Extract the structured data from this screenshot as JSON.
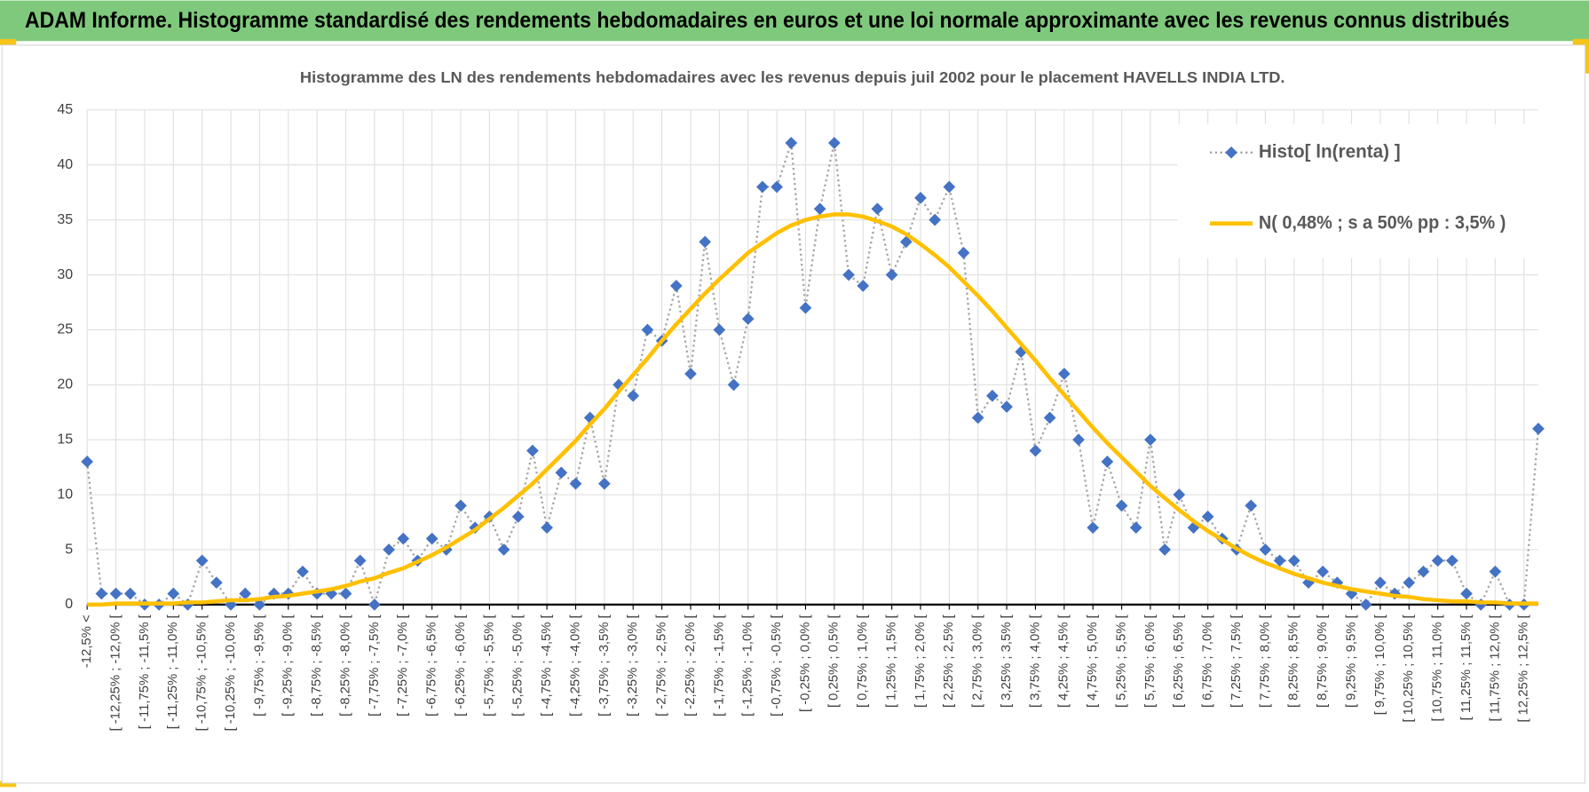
{
  "header": {
    "title": "ADAM Informe. Histogramme standardisé des rendements hebdomadaires en euros et une loi normale approximante avec les revenus connus distribués"
  },
  "chart_data": {
    "type": "line",
    "title": "Histogramme  des LN des rendements hebdomadaires avec les revenus depuis juil 2002 pour le placement HAVELLS INDIA LTD.",
    "categories": [
      "-12,5% <",
      null,
      "[ -12,25% ; -12,0% [",
      null,
      "[ -11,75% ; -11,5% [",
      null,
      "[ -11,25% ; -11,0% [",
      null,
      "[ -10,75% ; -10,5% [",
      null,
      "[ -10,25% ; -10,0% [",
      null,
      "[ -9,75% ; -9,5% [",
      null,
      "[ -9,25% ; -9,0% [",
      null,
      "[ -8,75% ; -8,5% [",
      null,
      "[ -8,25% ; -8,0% [",
      null,
      "[ -7,75% ; -7,5% [",
      null,
      "[ -7,25% ; -7,0% [",
      null,
      "[ -6,75% ; -6,5% [",
      null,
      "[ -6,25% ; -6,0% [",
      null,
      "[ -5,75% ; -5,5% [",
      null,
      "[ -5,25% ; -5,0% [",
      null,
      "[ -4,75% ; -4,5% [",
      null,
      "[ -4,25% ; -4,0% [",
      null,
      "[ -3,75% ; -3,5% [",
      null,
      "[ -3,25% ; -3,0% [",
      null,
      "[ -2,75% ; -2,5% [",
      null,
      "[ -2,25% ; -2,0% [",
      null,
      "[ -1,75% ; -1,5% [",
      null,
      "[ -1,25% ; -1,0% [",
      null,
      "[ -0,75% ; -0,5% [",
      null,
      "[ -0,25% ; 0,0% [",
      null,
      "[ 0,25% ; 0,5% [",
      null,
      "[ 0,75% ; 1,0% [",
      null,
      "[ 1,25% ; 1,5% [",
      null,
      "[ 1,75% ; 2,0% [",
      null,
      "[ 2,25% ; 2,5% [",
      null,
      "[ 2,75% ; 3,0% [",
      null,
      "[ 3,25% ; 3,5% [",
      null,
      "[ 3,75% ; 4,0% [",
      null,
      "[ 4,25% ; 4,5% [",
      null,
      "[ 4,75% ; 5,0% [",
      null,
      "[ 5,25% ; 5,5% [",
      null,
      "[ 5,75% ; 6,0% [",
      null,
      "[ 6,25% ; 6,5% [",
      null,
      "[ 6,75% ; 7,0% [",
      null,
      "[ 7,25% ; 7,5% [",
      null,
      "[ 7,75% ; 8,0% [",
      null,
      "[ 8,25% ; 8,5% [",
      null,
      "[ 8,75% ; 9,0% [",
      null,
      "[ 9,25% ; 9,5% [",
      null,
      "[ 9,75% ; 10,0% [",
      null,
      "[ 10,25% ; 10,5% [",
      null,
      "[ 10,75% ; 11,0% [",
      null,
      "[ 11,25% ; 11,5% [",
      null,
      "[ 11,75% ; 12,0% [",
      null,
      "[ 12,25% ; 12,5% [",
      null
    ],
    "series": [
      {
        "name": "Histo[ ln(renta) ]",
        "color": "#4472c4",
        "line_color": "#a6a6a6",
        "marker": "diamond",
        "dashed": true,
        "values": [
          13,
          1,
          1,
          1,
          0,
          0,
          1,
          0,
          4,
          2,
          0,
          1,
          0,
          1,
          1,
          3,
          1,
          1,
          1,
          4,
          0,
          5,
          6,
          4,
          6,
          5,
          9,
          7,
          8,
          5,
          8,
          14,
          7,
          12,
          11,
          17,
          11,
          20,
          19,
          25,
          24,
          29,
          21,
          33,
          25,
          20,
          26,
          38,
          38,
          42,
          27,
          36,
          42,
          30,
          29,
          36,
          30,
          33,
          37,
          35,
          38,
          32,
          17,
          19,
          18,
          23,
          14,
          17,
          21,
          15,
          7,
          13,
          9,
          7,
          15,
          5,
          10,
          7,
          8,
          6,
          5,
          9,
          5,
          4,
          4,
          2,
          3,
          2,
          1,
          0,
          2,
          1,
          2,
          3,
          4,
          4,
          1,
          0,
          3,
          0,
          0,
          16
        ]
      },
      {
        "name": "N( 0,48% ; s a 50% pp : 3,5% )",
        "color": "#ffc000",
        "marker": "none",
        "dashed": false,
        "values": [
          0.0,
          0.0,
          0.1,
          0.1,
          0.1,
          0.1,
          0.1,
          0.2,
          0.2,
          0.3,
          0.4,
          0.4,
          0.5,
          0.7,
          0.8,
          1.0,
          1.2,
          1.4,
          1.7,
          2.1,
          2.4,
          2.9,
          3.3,
          3.9,
          4.5,
          5.2,
          6.0,
          6.8,
          7.8,
          8.8,
          9.9,
          11.0,
          12.3,
          13.6,
          14.9,
          16.4,
          17.8,
          19.4,
          20.9,
          22.4,
          24.0,
          25.5,
          26.9,
          28.3,
          29.6,
          30.8,
          32.0,
          32.9,
          33.8,
          34.5,
          35.0,
          35.3,
          35.5,
          35.5,
          35.3,
          34.9,
          34.4,
          33.7,
          32.8,
          31.8,
          30.7,
          29.4,
          28.1,
          26.7,
          25.2,
          23.7,
          22.2,
          20.6,
          19.1,
          17.6,
          16.1,
          14.7,
          13.4,
          12.1,
          10.8,
          9.7,
          8.6,
          7.6,
          6.7,
          5.9,
          5.1,
          4.4,
          3.8,
          3.3,
          2.8,
          2.4,
          2.0,
          1.7,
          1.4,
          1.2,
          1.0,
          0.8,
          0.7,
          0.5,
          0.4,
          0.3,
          0.3,
          0.2,
          0.2,
          0.1,
          0.1,
          0.1
        ]
      }
    ],
    "ylim": [
      0,
      45
    ],
    "yticks": [
      0,
      5,
      10,
      15,
      20,
      25,
      30,
      35,
      40,
      45
    ],
    "grid": true,
    "legend": "top-right"
  }
}
